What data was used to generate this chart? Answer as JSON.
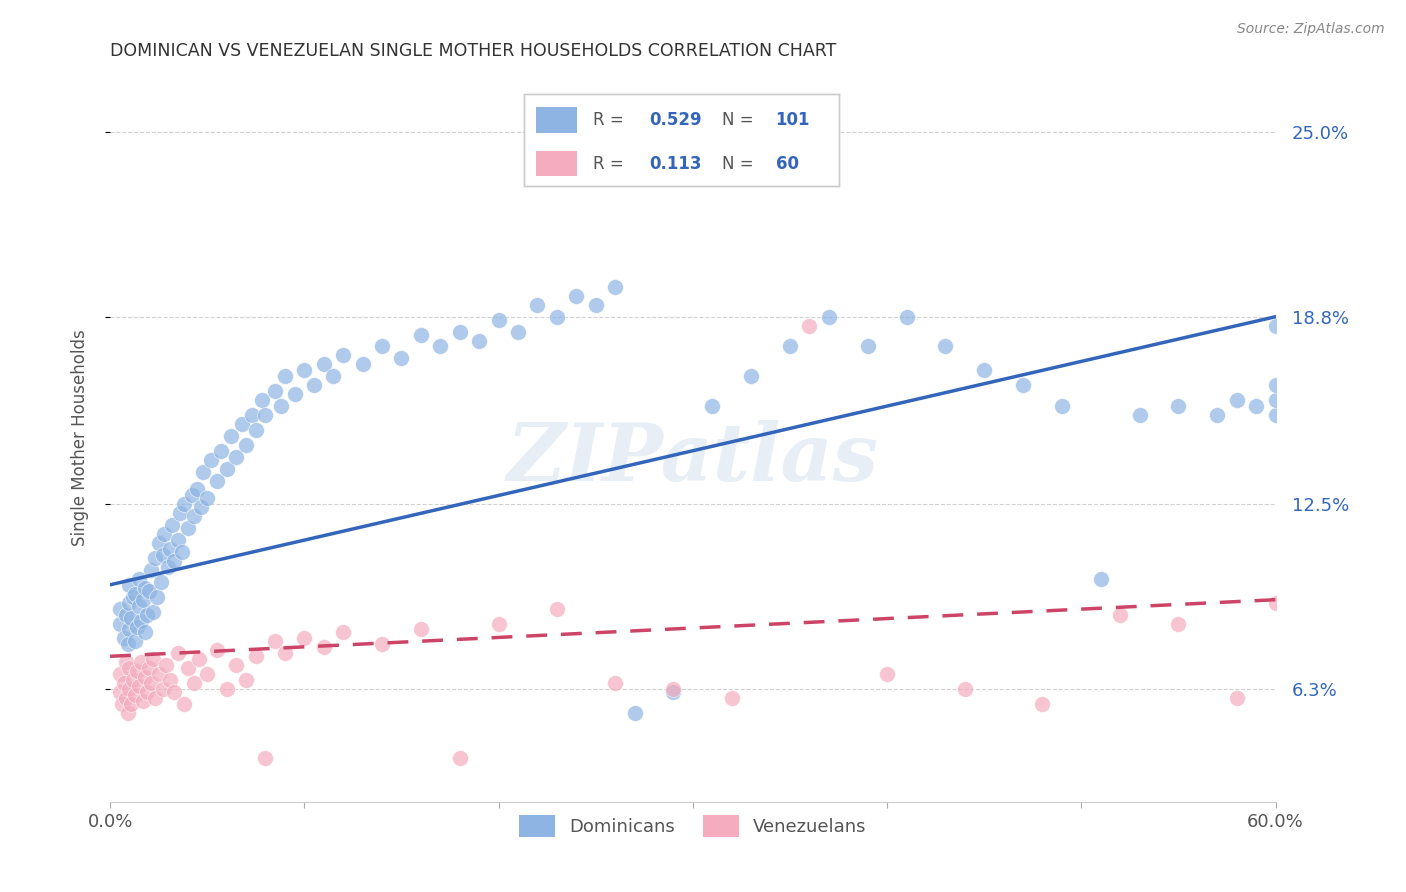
{
  "title": "DOMINICAN VS VENEZUELAN SINGLE MOTHER HOUSEHOLDS CORRELATION CHART",
  "source": "Source: ZipAtlas.com",
  "ylabel": "Single Mother Households",
  "x_min": 0.0,
  "x_max": 0.6,
  "y_min": 0.025,
  "y_max": 0.27,
  "y_ticks": [
    0.063,
    0.125,
    0.188,
    0.25
  ],
  "y_tick_labels": [
    "6.3%",
    "12.5%",
    "18.8%",
    "25.0%"
  ],
  "x_ticks": [
    0.0,
    0.1,
    0.2,
    0.3,
    0.4,
    0.5,
    0.6
  ],
  "x_tick_labels": [
    "0.0%",
    "",
    "",
    "",
    "",
    "",
    "60.0%"
  ],
  "blue_color": "#8DB4E2",
  "pink_color": "#F4ACBE",
  "line_blue": "#3366BB",
  "line_pink": "#CC4466",
  "watermark": "ZIPatlas",
  "dom_line_x0": 0.0,
  "dom_line_y0": 0.098,
  "dom_line_x1": 0.6,
  "dom_line_y1": 0.188,
  "ven_line_x0": 0.0,
  "ven_line_y0": 0.074,
  "ven_line_x1": 0.6,
  "ven_line_y1": 0.093,
  "dominican_x": [
    0.005,
    0.005,
    0.007,
    0.008,
    0.009,
    0.01,
    0.01,
    0.01,
    0.011,
    0.012,
    0.013,
    0.013,
    0.014,
    0.015,
    0.015,
    0.016,
    0.017,
    0.018,
    0.018,
    0.019,
    0.02,
    0.021,
    0.022,
    0.023,
    0.024,
    0.025,
    0.026,
    0.027,
    0.028,
    0.03,
    0.031,
    0.032,
    0.033,
    0.035,
    0.036,
    0.037,
    0.038,
    0.04,
    0.042,
    0.043,
    0.045,
    0.047,
    0.048,
    0.05,
    0.052,
    0.055,
    0.057,
    0.06,
    0.062,
    0.065,
    0.068,
    0.07,
    0.073,
    0.075,
    0.078,
    0.08,
    0.085,
    0.088,
    0.09,
    0.095,
    0.1,
    0.105,
    0.11,
    0.115,
    0.12,
    0.13,
    0.14,
    0.15,
    0.16,
    0.17,
    0.18,
    0.19,
    0.2,
    0.21,
    0.22,
    0.23,
    0.24,
    0.25,
    0.26,
    0.27,
    0.29,
    0.31,
    0.33,
    0.35,
    0.37,
    0.39,
    0.41,
    0.43,
    0.45,
    0.47,
    0.49,
    0.51,
    0.53,
    0.55,
    0.57,
    0.58,
    0.59,
    0.6,
    0.6,
    0.6,
    0.6
  ],
  "dominican_y": [
    0.085,
    0.09,
    0.08,
    0.088,
    0.078,
    0.083,
    0.092,
    0.098,
    0.087,
    0.094,
    0.079,
    0.095,
    0.084,
    0.091,
    0.1,
    0.086,
    0.093,
    0.082,
    0.097,
    0.088,
    0.096,
    0.103,
    0.089,
    0.107,
    0.094,
    0.112,
    0.099,
    0.108,
    0.115,
    0.104,
    0.11,
    0.118,
    0.106,
    0.113,
    0.122,
    0.109,
    0.125,
    0.117,
    0.128,
    0.121,
    0.13,
    0.124,
    0.136,
    0.127,
    0.14,
    0.133,
    0.143,
    0.137,
    0.148,
    0.141,
    0.152,
    0.145,
    0.155,
    0.15,
    0.16,
    0.155,
    0.163,
    0.158,
    0.168,
    0.162,
    0.17,
    0.165,
    0.172,
    0.168,
    0.175,
    0.172,
    0.178,
    0.174,
    0.182,
    0.178,
    0.183,
    0.18,
    0.187,
    0.183,
    0.192,
    0.188,
    0.195,
    0.192,
    0.198,
    0.055,
    0.062,
    0.158,
    0.168,
    0.178,
    0.188,
    0.178,
    0.188,
    0.178,
    0.17,
    0.165,
    0.158,
    0.1,
    0.155,
    0.158,
    0.155,
    0.16,
    0.158,
    0.185,
    0.155,
    0.16,
    0.165
  ],
  "venezuelan_x": [
    0.005,
    0.005,
    0.006,
    0.007,
    0.008,
    0.008,
    0.009,
    0.01,
    0.01,
    0.011,
    0.012,
    0.013,
    0.014,
    0.015,
    0.016,
    0.017,
    0.018,
    0.019,
    0.02,
    0.021,
    0.022,
    0.023,
    0.025,
    0.027,
    0.029,
    0.031,
    0.033,
    0.035,
    0.038,
    0.04,
    0.043,
    0.046,
    0.05,
    0.055,
    0.06,
    0.065,
    0.07,
    0.075,
    0.08,
    0.085,
    0.09,
    0.1,
    0.11,
    0.12,
    0.14,
    0.16,
    0.18,
    0.2,
    0.23,
    0.26,
    0.29,
    0.32,
    0.36,
    0.4,
    0.44,
    0.48,
    0.52,
    0.55,
    0.58,
    0.6
  ],
  "venezuelan_y": [
    0.062,
    0.068,
    0.058,
    0.065,
    0.06,
    0.072,
    0.055,
    0.063,
    0.07,
    0.058,
    0.066,
    0.061,
    0.069,
    0.064,
    0.072,
    0.059,
    0.067,
    0.062,
    0.07,
    0.065,
    0.073,
    0.06,
    0.068,
    0.063,
    0.071,
    0.066,
    0.062,
    0.075,
    0.058,
    0.07,
    0.065,
    0.073,
    0.068,
    0.076,
    0.063,
    0.071,
    0.066,
    0.074,
    0.04,
    0.079,
    0.075,
    0.08,
    0.077,
    0.082,
    0.078,
    0.083,
    0.04,
    0.085,
    0.09,
    0.065,
    0.063,
    0.06,
    0.185,
    0.068,
    0.063,
    0.058,
    0.088,
    0.085,
    0.06,
    0.092
  ]
}
